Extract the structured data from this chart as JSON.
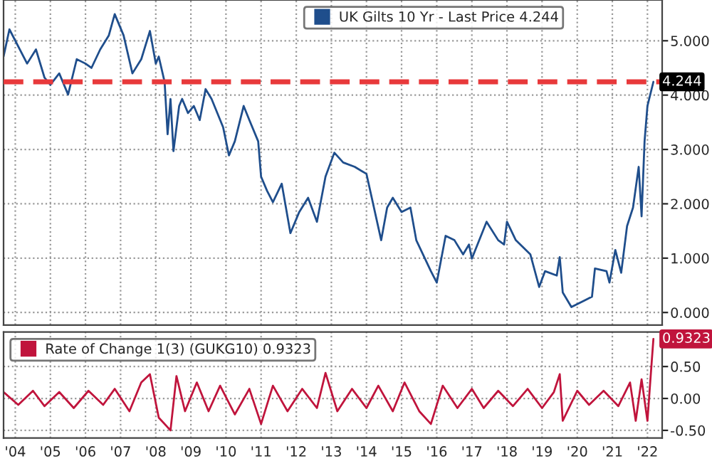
{
  "chart_data": [
    {
      "type": "line",
      "xlim": [
        "2004-03",
        "2022-12"
      ],
      "ylim": [
        -0.23,
        5.75
      ],
      "yticks": [
        {
          "value": 0,
          "label": "0.000"
        },
        {
          "value": 1,
          "label": "1.000"
        },
        {
          "value": 2,
          "label": "2.000"
        },
        {
          "value": 3,
          "label": "3.000"
        },
        {
          "value": 4,
          "label": "4.000"
        },
        {
          "value": 5,
          "label": "5.000"
        }
      ],
      "xticks": [
        {
          "value": "2004-07-01",
          "label": null
        },
        {
          "value": "2005-07-01",
          "label": null
        },
        {
          "value": "2006-07-01",
          "label": null
        },
        {
          "value": "2007-07-01",
          "label": null
        },
        {
          "value": "2008-07-01",
          "label": null
        },
        {
          "value": "2009-07-01",
          "label": null
        },
        {
          "value": "2010-07-01",
          "label": null
        },
        {
          "value": "2011-07-01",
          "label": null
        },
        {
          "value": "2012-07-01",
          "label": null
        },
        {
          "value": "2013-07-01",
          "label": null
        },
        {
          "value": "2014-07-01",
          "label": null
        },
        {
          "value": "2015-07-01",
          "label": null
        },
        {
          "value": "2016-07-01",
          "label": null
        },
        {
          "value": "2017-07-01",
          "label": null
        },
        {
          "value": "2018-07-01",
          "label": null
        },
        {
          "value": "2019-07-01",
          "label": null
        },
        {
          "value": "2020-07-01",
          "label": null
        },
        {
          "value": "2021-07-01",
          "label": null
        },
        {
          "value": "2022-07-01",
          "label": null
        }
      ],
      "tick_labels": "y",
      "grid": true,
      "legend": "top right",
      "ref_lines": [
        {
          "axis": "y",
          "value": 4.244,
          "label": "4.244",
          "color": "#e8393b",
          "line_style": "dashed"
        }
      ],
      "series": [
        {
          "name": "UK Gilts 10 Yr - Last Price 4.244",
          "color": "#1f4e8c",
          "x": [
            "2004-03",
            "2004-05",
            "2004-11",
            "2005-02",
            "2005-05",
            "2005-07",
            "2005-10",
            "2006-01",
            "2006-04",
            "2006-07",
            "2006-09",
            "2006-12",
            "2007-03",
            "2007-05",
            "2007-08",
            "2007-11",
            "2008-02",
            "2008-05",
            "2008-07",
            "2008-08",
            "2008-10",
            "2008-11",
            "2008-12",
            "2009-01",
            "2009-03",
            "2009-04",
            "2009-06",
            "2009-08",
            "2009-10",
            "2009-12",
            "2010-02",
            "2010-06",
            "2010-08",
            "2010-10",
            "2011-01",
            "2011-03",
            "2011-06",
            "2011-07",
            "2011-09",
            "2011-11",
            "2012-02",
            "2012-05",
            "2012-08",
            "2012-11",
            "2013-02",
            "2013-05",
            "2013-08",
            "2013-11",
            "2014-03",
            "2014-07",
            "2014-12",
            "2015-02",
            "2015-04",
            "2015-07",
            "2015-10",
            "2015-12",
            "2016-05",
            "2016-07",
            "2016-10",
            "2017-01",
            "2017-04",
            "2017-06",
            "2017-07",
            "2017-12",
            "2018-04",
            "2018-06",
            "2018-07",
            "2018-10",
            "2019-03",
            "2019-06",
            "2019-08",
            "2019-12",
            "2020-01",
            "2020-02",
            "2020-05",
            "2020-09",
            "2020-12",
            "2021-01",
            "2021-05",
            "2021-06",
            "2021-08",
            "2021-10",
            "2021-12",
            "2022-02",
            "2022-04",
            "2022-05",
            "2022-06",
            "2022-07",
            "2022-09"
          ],
          "values": [
            4.71,
            5.21,
            4.58,
            4.84,
            4.32,
            4.19,
            4.4,
            4.01,
            4.66,
            4.58,
            4.5,
            4.84,
            5.1,
            5.49,
            5.1,
            4.4,
            4.66,
            5.18,
            4.58,
            4.71,
            4.24,
            3.28,
            3.93,
            2.97,
            3.8,
            3.93,
            3.67,
            3.8,
            3.54,
            4.11,
            3.93,
            3.41,
            2.89,
            3.15,
            3.8,
            3.54,
            3.15,
            2.5,
            2.24,
            2.03,
            2.37,
            1.46,
            1.85,
            2.11,
            1.67,
            2.5,
            2.94,
            2.76,
            2.68,
            2.55,
            1.33,
            1.93,
            2.11,
            1.85,
            1.93,
            1.33,
            0.76,
            0.55,
            1.41,
            1.33,
            1.07,
            1.25,
            0.99,
            1.67,
            1.33,
            1.25,
            1.67,
            1.33,
            1.07,
            0.47,
            0.76,
            0.68,
            1.02,
            0.37,
            0.1,
            0.21,
            0.29,
            0.81,
            0.76,
            0.55,
            1.15,
            0.73,
            1.59,
            1.93,
            2.68,
            1.77,
            3.15,
            3.8,
            4.244
          ]
        }
      ]
    },
    {
      "type": "line",
      "xlim": [
        "2004-03",
        "2022-12"
      ],
      "ylim": [
        -0.62,
        1.04
      ],
      "yticks": [
        {
          "value": -0.5,
          "label": "-0.50"
        },
        {
          "value": 0,
          "label": "0.00"
        },
        {
          "value": 0.5,
          "label": "0.50"
        }
      ],
      "xticks": [
        {
          "value": "2004-07-01",
          "label": "'04"
        },
        {
          "value": "2005-07-01",
          "label": "'05"
        },
        {
          "value": "2006-07-01",
          "label": "'06"
        },
        {
          "value": "2007-07-01",
          "label": "'07"
        },
        {
          "value": "2008-07-01",
          "label": "'08"
        },
        {
          "value": "2009-07-01",
          "label": "'09"
        },
        {
          "value": "2010-07-01",
          "label": "'10"
        },
        {
          "value": "2011-07-01",
          "label": "'11"
        },
        {
          "value": "2012-07-01",
          "label": "'12"
        },
        {
          "value": "2013-07-01",
          "label": "'13"
        },
        {
          "value": "2014-07-01",
          "label": "'14"
        },
        {
          "value": "2015-07-01",
          "label": "'15"
        },
        {
          "value": "2016-07-01",
          "label": "'16"
        },
        {
          "value": "2017-07-01",
          "label": "'17"
        },
        {
          "value": "2018-07-01",
          "label": "'18"
        },
        {
          "value": "2019-07-01",
          "label": "'19"
        },
        {
          "value": "2020-07-01",
          "label": "'20"
        },
        {
          "value": "2021-07-01",
          "label": "'21"
        },
        {
          "value": "2022-07-01",
          "label": "'22"
        }
      ],
      "grid": true,
      "legend": "top left",
      "annotations": [
        {
          "text": "0.9323",
          "x": "2022-09",
          "y": 0.9323
        }
      ],
      "series": [
        {
          "name": "Rate of Change 1(3) (GUKG10) 0.9323",
          "color": "#c0143c",
          "x": [
            "2004-03",
            "2004-08",
            "2005-01",
            "2005-05",
            "2005-10",
            "2006-03",
            "2006-08",
            "2007-01",
            "2007-05",
            "2007-10",
            "2008-02",
            "2008-05",
            "2008-08",
            "2008-12",
            "2009-02",
            "2009-05",
            "2009-09",
            "2010-01",
            "2010-05",
            "2010-10",
            "2011-03",
            "2011-07",
            "2011-11",
            "2012-04",
            "2012-09",
            "2013-02",
            "2013-05",
            "2013-09",
            "2014-02",
            "2014-07",
            "2014-11",
            "2015-04",
            "2015-08",
            "2016-01",
            "2016-05",
            "2016-09",
            "2017-02",
            "2017-07",
            "2017-11",
            "2018-04",
            "2018-09",
            "2019-02",
            "2019-07",
            "2019-11",
            "2020-01",
            "2020-02",
            "2020-07",
            "2020-11",
            "2021-04",
            "2021-09",
            "2022-01",
            "2022-03",
            "2022-05",
            "2022-07",
            "2022-08",
            "2022-09"
          ],
          "values": [
            0.1,
            -0.1,
            0.12,
            -0.12,
            0.1,
            -0.15,
            0.12,
            -0.1,
            0.15,
            -0.2,
            0.25,
            0.38,
            -0.3,
            -0.5,
            0.35,
            -0.2,
            0.25,
            -0.2,
            0.2,
            -0.25,
            0.15,
            -0.4,
            0.2,
            -0.2,
            0.15,
            -0.15,
            0.4,
            -0.2,
            0.15,
            -0.15,
            0.2,
            -0.2,
            0.25,
            -0.2,
            -0.4,
            0.2,
            -0.15,
            0.15,
            -0.15,
            0.12,
            -0.12,
            0.15,
            -0.15,
            0.1,
            0.38,
            -0.35,
            0.12,
            -0.1,
            0.12,
            -0.12,
            0.25,
            -0.35,
            0.3,
            -0.35,
            0.3,
            0.9323
          ]
        }
      ]
    }
  ]
}
